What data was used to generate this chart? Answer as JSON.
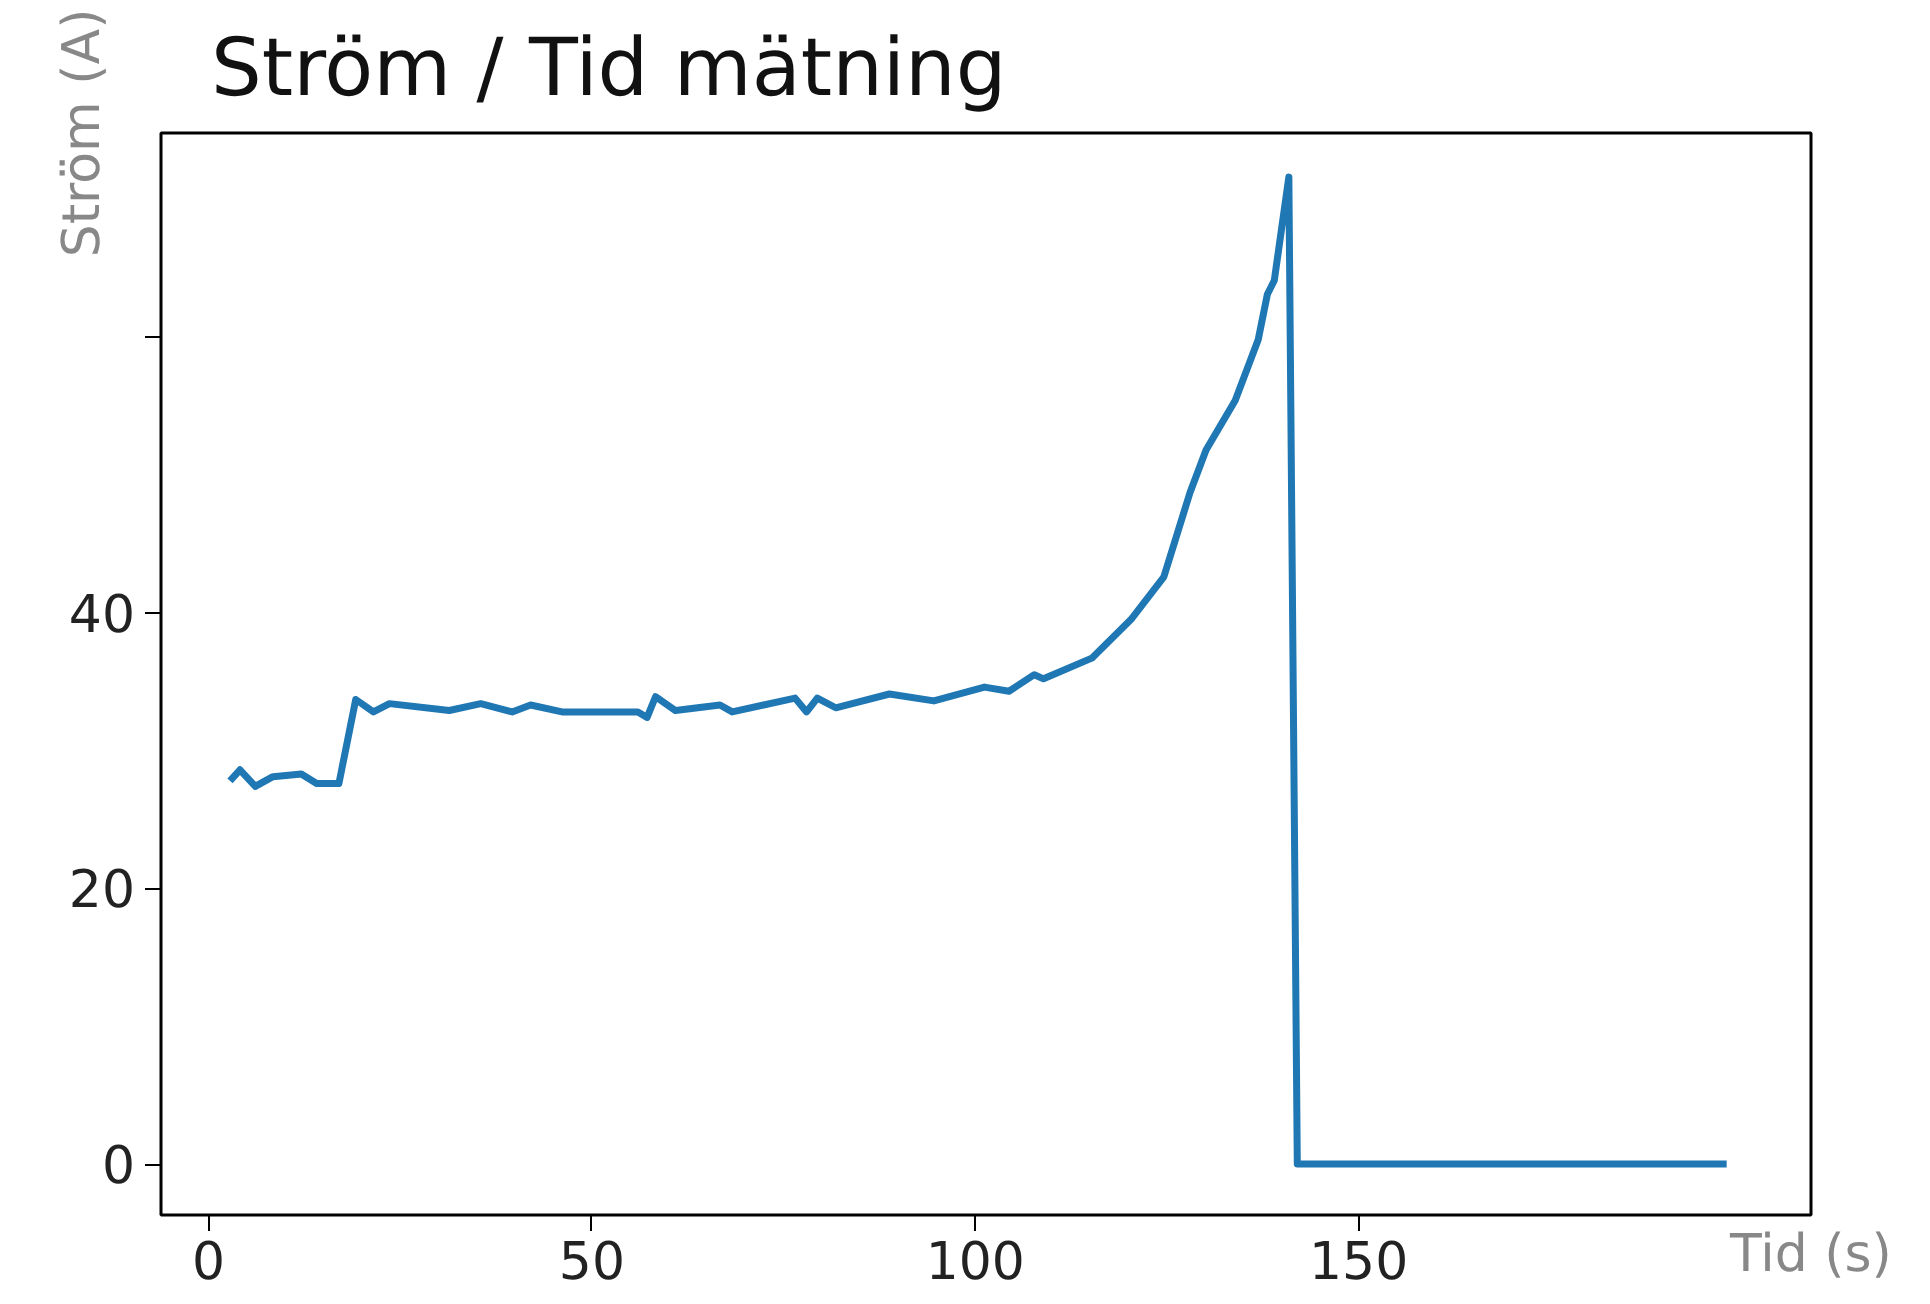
{
  "chart_data": {
    "type": "line",
    "title": "Ström / Tid mätning",
    "xlabel": "Tid (s)",
    "ylabel": "Ström (A)",
    "x": [
      2.8,
      4.1,
      6.1,
      8.4,
      12.1,
      14.1,
      17,
      19.2,
      21.5,
      23.6,
      31.4,
      35.5,
      39.6,
      42,
      46.1,
      56,
      57.2,
      58.3,
      60.9,
      66.7,
      68.3,
      76.5,
      78,
      79.4,
      81.8,
      88.8,
      94.6,
      101.2,
      104.4,
      107.7,
      108.9,
      115.2,
      120.3,
      124.6,
      128,
      130.1,
      133.9,
      136.9,
      138.1,
      139,
      140.9,
      142,
      198
    ],
    "series": [
      {
        "color": "#1f77b4",
        "values": [
          27.8,
          28.6,
          27.4,
          28.1,
          28.3,
          27.6,
          27.6,
          33.7,
          32.8,
          33.4,
          32.9,
          33.4,
          32.8,
          33.3,
          32.8,
          32.8,
          32.4,
          33.9,
          32.9,
          33.3,
          32.8,
          33.8,
          32.8,
          33.8,
          33.1,
          34.1,
          33.6,
          34.6,
          34.3,
          35.5,
          35.2,
          36.7,
          39.5,
          42.6,
          48.7,
          51.8,
          55.4,
          59.8,
          63.1,
          64.1,
          71.6,
          0,
          0
        ]
      }
    ],
    "xlim": [
      -6.2,
      209
    ],
    "ylim": [
      -3.7,
      74.8
    ],
    "xticks": [
      0,
      50,
      100,
      150
    ],
    "yticks": [
      0,
      20,
      40,
      {
        "value": 60,
        "label": null
      }
    ],
    "grid": false,
    "marker": "none",
    "line_style": "solid"
  }
}
